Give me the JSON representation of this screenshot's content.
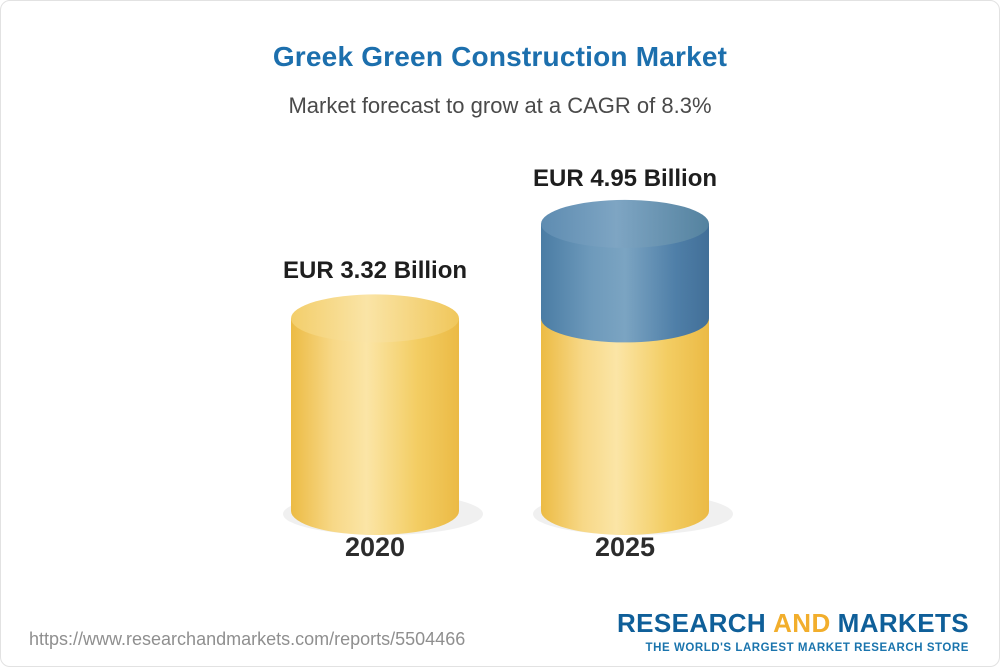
{
  "header": {
    "title": "Greek Green Construction Market",
    "subtitle": "Market forecast to grow at a CAGR of 8.3%"
  },
  "chart_data": {
    "type": "bar",
    "style": "3d-cylinder",
    "title": "Greek Green Construction Market",
    "subtitle": "Market forecast to grow at a CAGR of 8.3%",
    "cagr": "8.3%",
    "unit": "EUR Billion",
    "categories": [
      "2020",
      "2025"
    ],
    "values": [
      3.32,
      4.95
    ],
    "value_labels": [
      "EUR 3.32 Billion",
      "EUR 4.95 Billion"
    ],
    "ylim": [
      0,
      5
    ],
    "legend": "none",
    "colors": {
      "base_segment": "#F5CE63",
      "growth_segment": "#5286AC"
    }
  },
  "footer": {
    "url": "https://www.researchandmarkets.com/reports/5504466",
    "logo": {
      "part1": "RESEARCH",
      "part2": "AND",
      "part3": "MARKETS",
      "tagline": "THE WORLD'S LARGEST MARKET RESEARCH STORE"
    }
  }
}
